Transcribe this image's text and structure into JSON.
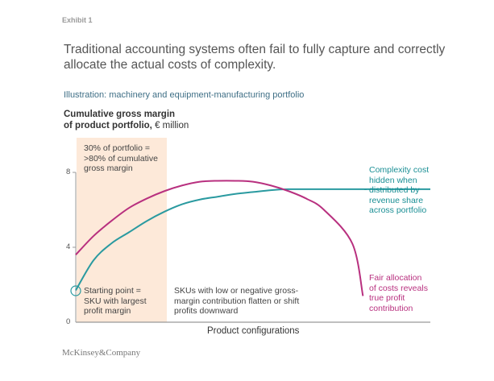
{
  "header": {
    "exhibit": "Exhibit 1",
    "title": "Traditional accounting systems often fail to fully capture and correctly allocate the actual costs of complexity.",
    "subtitle": "Illustration: machinery and equipment-manufacturing portfolio"
  },
  "footer": {
    "brand": "McKinsey&Company"
  },
  "colors": {
    "teal": "#2a9aa0",
    "magenta": "#b8307f",
    "shade": "#fde9d9",
    "axis": "#999999"
  },
  "annotations": {
    "shade_note": [
      "30% of portfolio =",
      ">80% of cumulative",
      "gross margin"
    ],
    "start_note": [
      "Starting point =",
      "SKU with largest",
      "profit margin"
    ],
    "tail_note": [
      "SKUs with low or negative gross-",
      "margin contribution flatten or shift",
      "profits downward"
    ],
    "teal_note": [
      "Complexity cost",
      "hidden when",
      "distributed by",
      "revenue share",
      "across portfolio"
    ],
    "magenta_note": [
      "Fair allocation",
      "of costs reveals",
      "true profit",
      "contribution"
    ]
  },
  "chart_data": {
    "type": "line",
    "title": "Traditional accounting systems often fail to fully capture and correctly allocate the actual costs of complexity.",
    "ylabel": "Cumulative gross margin of product portfolio, € million",
    "xlabel": "Product configurations",
    "ylim": [
      0,
      8
    ],
    "yticks": [
      "0",
      "4",
      "8"
    ],
    "grid": false,
    "x": [
      0,
      5,
      10,
      15,
      20,
      25,
      30,
      35,
      40,
      45,
      50,
      55,
      60,
      65,
      70,
      75,
      80,
      85,
      90,
      95,
      100
    ],
    "series": [
      {
        "name": "Complexity cost hidden when distributed by revenue share across portfolio",
        "color": "#2a9aa0",
        "values": [
          1.7,
          3.3,
          4.2,
          4.8,
          5.4,
          5.9,
          6.3,
          6.55,
          6.7,
          6.85,
          6.95,
          7.05,
          7.1,
          7.1,
          7.1,
          7.1,
          7.1,
          7.1,
          7.1,
          7.1,
          7.1
        ]
      },
      {
        "name": "Fair allocation of costs reveals true profit contribution",
        "color": "#b8307f",
        "values": [
          3.6,
          4.6,
          5.4,
          6.1,
          6.6,
          7.0,
          7.3,
          7.5,
          7.55,
          7.55,
          7.5,
          7.3,
          7.0,
          6.6,
          6.0,
          4.2,
          1.4
        ]
      }
    ],
    "x_magenta": [
      0,
      5,
      10,
      15,
      20,
      25,
      30,
      35,
      40,
      45,
      50,
      55,
      60,
      65,
      70,
      78,
      81
    ],
    "shaded_region": {
      "x_from": 0,
      "x_to": 25,
      "label": "30% of portfolio = >80% of cumulative gross margin"
    }
  }
}
